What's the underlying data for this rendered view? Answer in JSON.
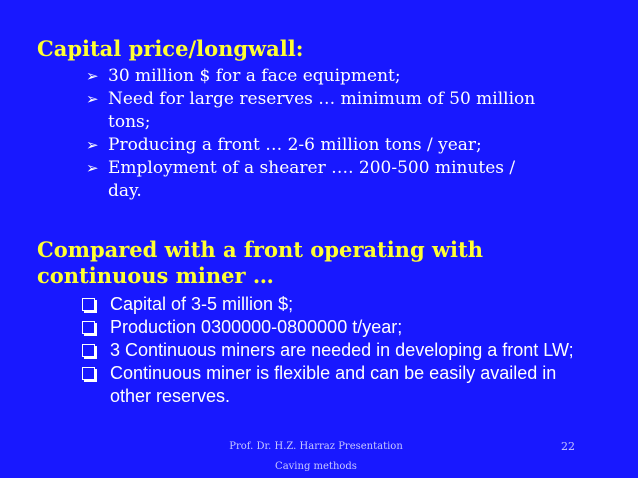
{
  "section1": {
    "title": "Capital price/longwall:",
    "items": [
      "30 million $ for a face equipment;",
      "Need for large reserves … minimum of 50 million tons;",
      "Producing a front … 2-6 million tons / year;",
      "Employment of a shearer …. 200-500 minutes / day."
    ]
  },
  "section2": {
    "title_line1": "Compared with a front operating with",
    "title_line2": "continuous miner …",
    "items": [
      "Capital of 3-5 million $;",
      "Production 0300000-0800000 t/year;",
      "3 Continuous miners are needed in developing a front LW;",
      "Continuous miner is flexible and can be easily availed in other reserves."
    ]
  },
  "footer": {
    "line1": "Prof. Dr. H.Z. Harraz Presentation",
    "line2": "Caving methods",
    "page_number": "22"
  },
  "colors": {
    "background": "#1818ff",
    "heading": "#ffff33",
    "text": "#ffffff"
  },
  "icons": {
    "bullet1": "arrow-bullet-icon",
    "bullet2": "square-bullet-icon"
  }
}
